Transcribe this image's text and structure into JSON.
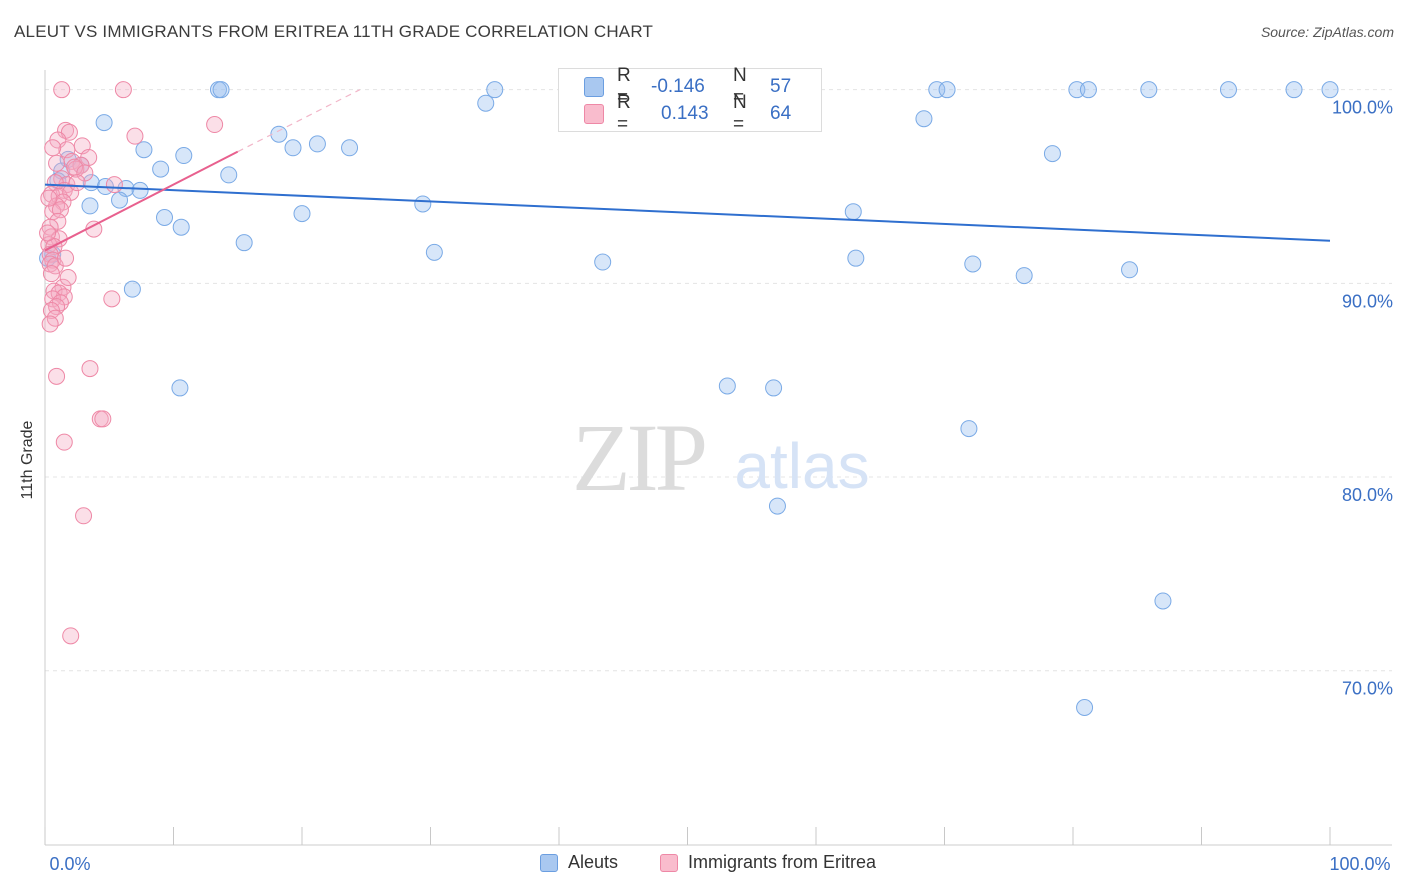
{
  "title": "ALEUT VS IMMIGRANTS FROM ERITREA 11TH GRADE CORRELATION CHART",
  "source": "Source: ZipAtlas.com",
  "watermark": {
    "left": "ZIP",
    "right": "atlas"
  },
  "legend_stats": {
    "rows": [
      {
        "r_label": "R =",
        "r_value": "-0.146",
        "n_label": "N =",
        "n_value": "57",
        "color": "#a9c8f0",
        "border": "#6b9ee0"
      },
      {
        "r_label": "R =",
        "r_value": "0.143",
        "n_label": "N =",
        "n_value": "64",
        "color": "#f9bccd",
        "border": "#ee88a6"
      }
    ]
  },
  "legend_bottom": [
    {
      "label": "Aleuts",
      "color": "#a9c8f0",
      "border": "#6b9ee0"
    },
    {
      "label": "Immigrants from Eritrea",
      "color": "#f9bccd",
      "border": "#ee88a6"
    }
  ],
  "colors": {
    "aleut_fill": "rgba(150,190,240,0.38)",
    "aleut_stroke": "#7aaae6",
    "aleut_line": "#2f6fcf",
    "eritrea_fill": "rgba(245,170,195,0.38)",
    "eritrea_stroke": "#ee88a6",
    "eritrea_line": "#e8608e",
    "axis_text": "#3a6fc4",
    "grid": "#e4e4e4"
  },
  "chart_data": {
    "type": "scatter",
    "title": "ALEUT VS IMMIGRANTS FROM ERITREA 11TH GRADE CORRELATION CHART",
    "xlabel": "",
    "ylabel": "11th Grade",
    "xlim": [
      0,
      100
    ],
    "ylim": [
      61,
      100.5
    ],
    "x_tick_labels": [
      "0.0%",
      "100.0%"
    ],
    "y_ticks": [
      70,
      80,
      90,
      100
    ],
    "y_tick_labels": [
      "70.0%",
      "80.0%",
      "90.0%",
      "100.0%"
    ],
    "grid": true,
    "legend_position": "bottom",
    "series": [
      {
        "name": "Aleuts",
        "trend": {
          "x": [
            0,
            100
          ],
          "y": [
            95.1,
            92.2
          ]
        },
        "points": [
          [
            13.5,
            100
          ],
          [
            13.7,
            100
          ],
          [
            35.0,
            100
          ],
          [
            47.3,
            100
          ],
          [
            55.6,
            100
          ],
          [
            69.4,
            100
          ],
          [
            70.2,
            100
          ],
          [
            80.3,
            100
          ],
          [
            81.2,
            100
          ],
          [
            85.9,
            100
          ],
          [
            92.1,
            100
          ],
          [
            97.2,
            100
          ],
          [
            100,
            100
          ],
          [
            4.6,
            98.3
          ],
          [
            34.3,
            99.3
          ],
          [
            68.4,
            98.5
          ],
          [
            18.2,
            97.7
          ],
          [
            19.3,
            97.0
          ],
          [
            21.2,
            97.2
          ],
          [
            23.7,
            97.0
          ],
          [
            7.7,
            96.9
          ],
          [
            10.8,
            96.6
          ],
          [
            1.8,
            96.4
          ],
          [
            2.8,
            96.1
          ],
          [
            1.3,
            95.8
          ],
          [
            9.0,
            95.9
          ],
          [
            14.3,
            95.6
          ],
          [
            3.6,
            95.2
          ],
          [
            4.7,
            95.0
          ],
          [
            6.3,
            94.9
          ],
          [
            7.4,
            94.8
          ],
          [
            1.0,
            95.3
          ],
          [
            5.8,
            94.3
          ],
          [
            3.5,
            94.0
          ],
          [
            29.4,
            94.1
          ],
          [
            9.3,
            93.4
          ],
          [
            20.0,
            93.6
          ],
          [
            62.9,
            93.7
          ],
          [
            10.6,
            92.9
          ],
          [
            15.5,
            92.1
          ],
          [
            30.3,
            91.6
          ],
          [
            43.4,
            91.1
          ],
          [
            63.1,
            91.3
          ],
          [
            72.2,
            91.0
          ],
          [
            76.2,
            90.4
          ],
          [
            84.4,
            90.7
          ],
          [
            6.8,
            89.7
          ],
          [
            0.6,
            91.5
          ],
          [
            10.5,
            84.6
          ],
          [
            53.1,
            84.7
          ],
          [
            56.7,
            84.6
          ],
          [
            71.9,
            82.5
          ],
          [
            57.0,
            78.5
          ],
          [
            87.0,
            73.6
          ],
          [
            80.9,
            68.1
          ],
          [
            78.4,
            96.7
          ],
          [
            0.2,
            91.3
          ]
        ]
      },
      {
        "name": "Immigrants from Eritrea",
        "trend": {
          "x": [
            0,
            15
          ],
          "y": [
            91.7,
            96.8
          ]
        },
        "trend_extension": {
          "x": [
            15,
            24.5
          ],
          "y": [
            96.8,
            100.0
          ]
        },
        "points": [
          [
            1.3,
            100
          ],
          [
            6.1,
            100
          ],
          [
            13.2,
            98.2
          ],
          [
            1.6,
            97.9
          ],
          [
            1.9,
            97.8
          ],
          [
            7.0,
            97.6
          ],
          [
            1.0,
            97.4
          ],
          [
            2.9,
            97.1
          ],
          [
            1.7,
            96.9
          ],
          [
            3.4,
            96.5
          ],
          [
            2.1,
            96.3
          ],
          [
            2.8,
            96.1
          ],
          [
            2.4,
            95.9
          ],
          [
            1.3,
            95.4
          ],
          [
            1.7,
            95.1
          ],
          [
            5.4,
            95.1
          ],
          [
            0.8,
            95.2
          ],
          [
            1.5,
            94.8
          ],
          [
            0.5,
            94.6
          ],
          [
            1.1,
            94.5
          ],
          [
            2.0,
            94.7
          ],
          [
            1.4,
            94.2
          ],
          [
            0.9,
            94.0
          ],
          [
            0.6,
            93.7
          ],
          [
            1.2,
            93.8
          ],
          [
            1.0,
            93.2
          ],
          [
            0.4,
            92.9
          ],
          [
            3.8,
            92.8
          ],
          [
            0.5,
            92.4
          ],
          [
            1.1,
            92.3
          ],
          [
            0.3,
            92.0
          ],
          [
            0.7,
            91.9
          ],
          [
            0.4,
            91.5
          ],
          [
            0.6,
            91.2
          ],
          [
            0.4,
            91.0
          ],
          [
            0.8,
            90.9
          ],
          [
            0.5,
            90.5
          ],
          [
            1.4,
            89.8
          ],
          [
            0.7,
            89.6
          ],
          [
            1.1,
            89.5
          ],
          [
            1.5,
            89.3
          ],
          [
            0.6,
            89.2
          ],
          [
            5.2,
            89.2
          ],
          [
            1.2,
            89.0
          ],
          [
            0.9,
            88.8
          ],
          [
            0.5,
            88.6
          ],
          [
            0.8,
            88.2
          ],
          [
            0.4,
            87.9
          ],
          [
            3.5,
            85.6
          ],
          [
            0.9,
            85.2
          ],
          [
            4.3,
            83.0
          ],
          [
            4.5,
            83.0
          ],
          [
            1.5,
            81.8
          ],
          [
            3.0,
            78.0
          ],
          [
            2.0,
            71.8
          ],
          [
            2.3,
            96.0
          ],
          [
            3.1,
            95.7
          ],
          [
            0.9,
            96.2
          ],
          [
            1.8,
            90.3
          ],
          [
            0.6,
            97.0
          ],
          [
            0.2,
            92.6
          ],
          [
            1.6,
            91.3
          ],
          [
            0.3,
            94.4
          ],
          [
            2.5,
            95.2
          ]
        ]
      }
    ]
  }
}
